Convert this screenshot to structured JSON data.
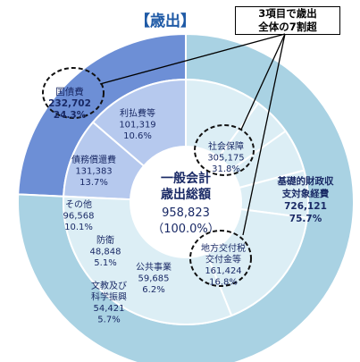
{
  "callout": {
    "line1": "3項目で歳出",
    "line2": "全体の7割超"
  },
  "chart_data": {
    "type": "donut",
    "title": "【歳出】",
    "center": {
      "line1": "一般会計",
      "line2": "歳出総額",
      "value": "958,823",
      "percent": "（100.0%）"
    },
    "outer": [
      {
        "name": "国債費",
        "value": 232702,
        "value_label": "232,702",
        "percent": "24.3%"
      },
      {
        "name": "基礎的財政収支対象経費",
        "label_lines": [
          "基礎的財政収",
          "支対象経費"
        ],
        "value": 726121,
        "value_label": "726,121",
        "percent": "75.7%"
      }
    ],
    "inner": [
      {
        "name": "利払費等",
        "value": 101319,
        "value_label": "101,319",
        "percent": "10.6%",
        "group": "国債費"
      },
      {
        "name": "債務償還費",
        "value": 131383,
        "value_label": "131,383",
        "percent": "13.7%",
        "group": "国債費"
      },
      {
        "name": "その他",
        "value": 96568,
        "value_label": "96,568",
        "percent": "10.1%",
        "group": "基礎的財政収支対象経費"
      },
      {
        "name": "防衛",
        "value": 48848,
        "value_label": "48,848",
        "percent": "5.1%",
        "group": "基礎的財政収支対象経費"
      },
      {
        "name": "文教及び科学振興",
        "label_lines": [
          "文教及び",
          "科学振興"
        ],
        "value": 54421,
        "value_label": "54,421",
        "percent": "5.7%",
        "group": "基礎的財政収支対象経費"
      },
      {
        "name": "公共事業",
        "value": 59685,
        "value_label": "59,685",
        "percent": "6.2%",
        "group": "基礎的財政収支対象経費"
      },
      {
        "name": "地方交付税交付金等",
        "label_lines": [
          "地方交付税",
          "交付金等"
        ],
        "value": 161424,
        "value_label": "161,424",
        "percent": "16.8%",
        "group": "基礎的財政収支対象経費"
      },
      {
        "name": "社会保障",
        "value": 305175,
        "value_label": "305,175",
        "percent": "31.8%",
        "group": "基礎的財政収支対象経費"
      }
    ],
    "highlighted": [
      "国債費",
      "社会保障",
      "地方交付税交付金等"
    ],
    "colors": {
      "debt_outer": "#6d8fd6",
      "debt_inner": "#b6c9ee",
      "primary_outer": "#a9d2e3",
      "primary_inner": "#dceef5",
      "text_dark": "#1a2a66",
      "title": "#1f5aa6"
    }
  }
}
